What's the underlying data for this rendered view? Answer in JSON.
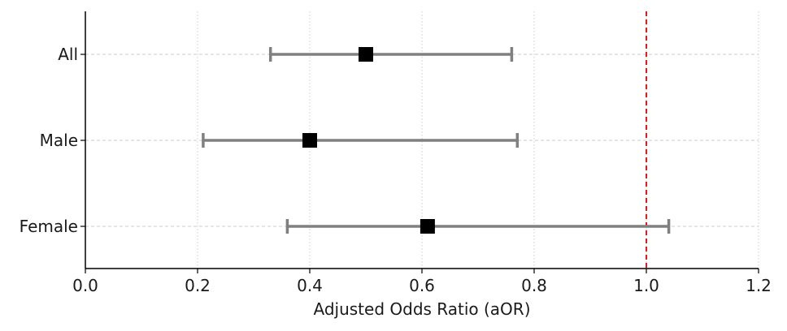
{
  "chart_data": {
    "type": "forest",
    "title": "",
    "xlabel": "Adjusted Odds Ratio (aOR)",
    "ylabel": "",
    "xlim": [
      0.0,
      1.2
    ],
    "xticks": [
      "0.0",
      "0.2",
      "0.4",
      "0.6",
      "0.8",
      "1.0",
      "1.2"
    ],
    "reference_line": 1.0,
    "grid": true,
    "categories": [
      "All",
      "Male",
      "Female"
    ],
    "estimates": [
      0.5,
      0.4,
      0.61
    ],
    "ci_lower": [
      0.33,
      0.21,
      0.36
    ],
    "ci_upper": [
      0.76,
      0.77,
      1.04
    ],
    "colors": {
      "marker": "#000000",
      "error_bar": "#808080",
      "reference_line": "#e41a1c",
      "grid": "#cccccc",
      "axis": "#000000"
    }
  }
}
